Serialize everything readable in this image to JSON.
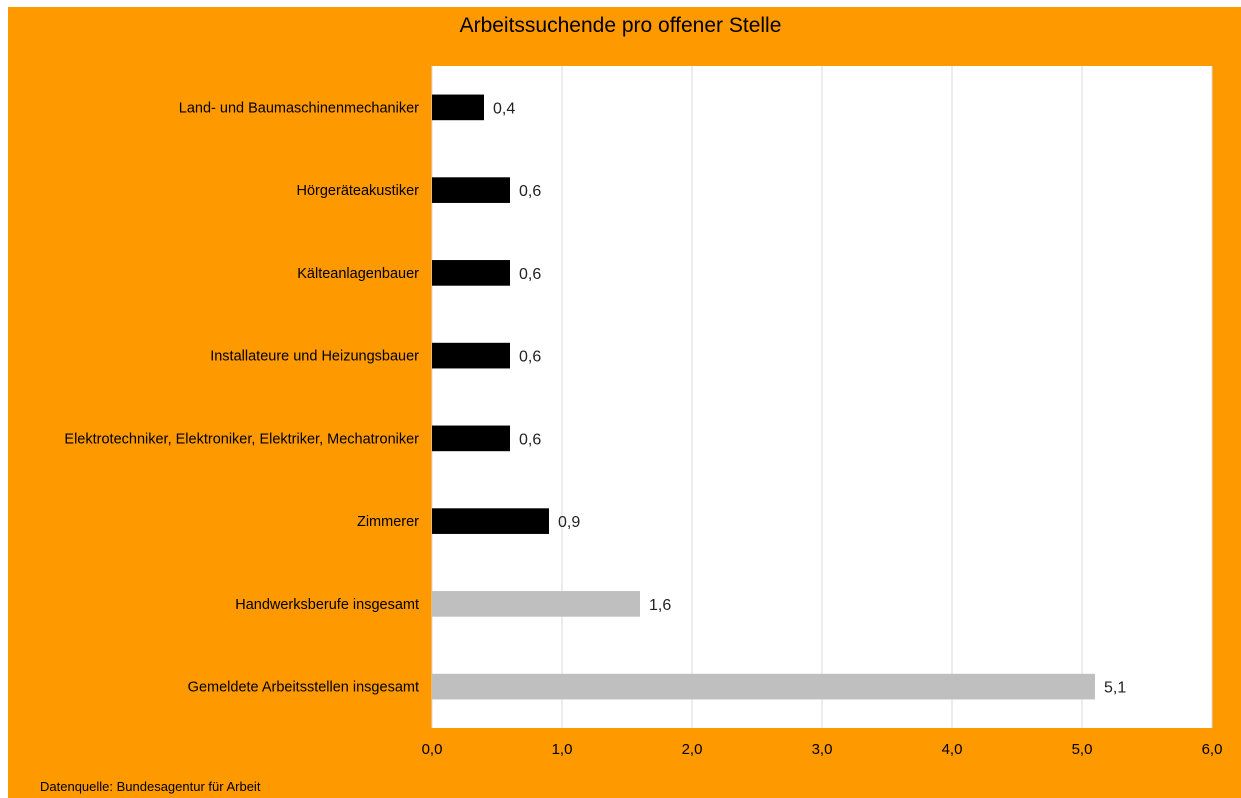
{
  "colors": {
    "background": "#FF9900",
    "plot_area": "#FFFFFF",
    "gridline": "#D9D9D9",
    "bar_highlight": "#000000",
    "bar_total": "#BFBFBF"
  },
  "source_note": "Datenquelle: Bundesagentur für Arbeit",
  "chart_data": {
    "type": "bar",
    "orientation": "horizontal",
    "title": "Arbeitssuchende pro offener Stelle",
    "xlabel": "",
    "ylabel": "",
    "xlim": [
      0,
      6
    ],
    "x_ticks": [
      "0,0",
      "1,0",
      "2,0",
      "3,0",
      "4,0",
      "5,0",
      "6,0"
    ],
    "x_tick_values": [
      0,
      1,
      2,
      3,
      4,
      5,
      6
    ],
    "grid": "vertical",
    "categories": [
      "Land- und Baumaschinenmechaniker",
      "Hörgeräteakustiker",
      "Kälteanlagenbauer",
      "Installateure und Heizungsbauer",
      "Elektrotechniker, Elektroniker, Elektriker, Mechatroniker",
      "Zimmerer",
      "Handwerksberufe insgesamt",
      "Gemeldete Arbeitsstellen insgesamt"
    ],
    "values": [
      0.4,
      0.6,
      0.6,
      0.6,
      0.6,
      0.9,
      1.6,
      5.1
    ],
    "data_labels": [
      "0,4",
      "0,6",
      "0,6",
      "0,6",
      "0,6",
      "0,9",
      "1,6",
      "5,1"
    ],
    "bar_colors": [
      "#000000",
      "#000000",
      "#000000",
      "#000000",
      "#000000",
      "#000000",
      "#BFBFBF",
      "#BFBFBF"
    ]
  }
}
